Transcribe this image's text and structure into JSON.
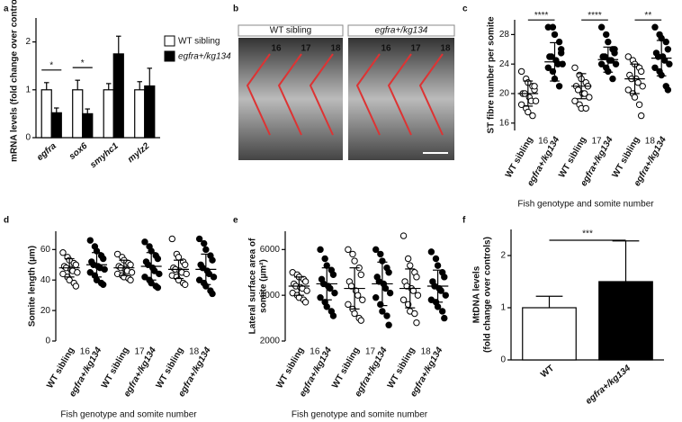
{
  "chart_data": [
    {
      "type": "bar",
      "panel_label": "a",
      "ylabel": "mRNA levels (fold change over control)",
      "categories": [
        "egfra",
        "sox6",
        "smyhc1",
        "mylz2"
      ],
      "series": [
        {
          "name": "WT sibling",
          "color": "#ffffff",
          "values": [
            1,
            1,
            1,
            1
          ],
          "errors": [
            0.15,
            0.2,
            0.13,
            0.17
          ]
        },
        {
          "name": "egfra+/kg134",
          "color": "#000000",
          "values": [
            0.52,
            0.5,
            1.75,
            1.08
          ],
          "errors": [
            0.1,
            0.1,
            0.37,
            0.37
          ]
        }
      ],
      "annotations": [
        "*",
        "*",
        null,
        null
      ],
      "ylim": [
        0,
        2.5
      ],
      "yticks": [
        0,
        1,
        2
      ]
    },
    {
      "type": "image",
      "panel_label": "b",
      "labels": [
        "WT sibling",
        "egfra+/kg134"
      ],
      "somites": [
        "16",
        "17",
        "18"
      ]
    },
    {
      "type": "dot",
      "panel_label": "c",
      "ylabel": "ST fibre number per somite",
      "xlabel": "Fish genotype and somite number",
      "somites": [
        "16",
        "17",
        "18"
      ],
      "annotations": [
        "****",
        "****",
        "**"
      ],
      "groups": [
        {
          "name": "WT sibling",
          "filled": false,
          "mean": 20,
          "sd": 1.7,
          "values": [
            23,
            22,
            21.5,
            21,
            20.5,
            20,
            20,
            19.5,
            19,
            19,
            18.5,
            18,
            17.5,
            17,
            21
          ]
        },
        {
          "name": "egfra+/kg134",
          "filled": true,
          "mean": 24.3,
          "sd": 2.6,
          "values": [
            29,
            29,
            28,
            27,
            26,
            25,
            25,
            24.5,
            24,
            24,
            23.5,
            23,
            22,
            21,
            25.5
          ]
        },
        {
          "name": "WT sibling",
          "filled": false,
          "mean": 21,
          "sd": 1.7,
          "values": [
            23.5,
            22.5,
            22,
            21.5,
            21,
            21,
            20.5,
            20,
            20,
            19.5,
            19,
            18.5,
            18,
            18,
            21
          ]
        },
        {
          "name": "egfra+/kg134",
          "filled": true,
          "mean": 24.6,
          "sd": 1.7,
          "values": [
            29,
            28,
            27,
            26,
            25.5,
            25,
            25,
            24.5,
            24.5,
            24,
            24,
            23.5,
            23,
            22,
            26
          ]
        },
        {
          "name": "WT sibling",
          "filled": false,
          "mean": 22,
          "sd": 2,
          "values": [
            25,
            24.5,
            24,
            23.5,
            23,
            22.5,
            22,
            22,
            21.5,
            21,
            20.5,
            20,
            19.5,
            18.5,
            17
          ]
        },
        {
          "name": "egfra+/kg134",
          "filled": true,
          "mean": 24.8,
          "sd": 2.4,
          "values": [
            29,
            28,
            27.5,
            27,
            26,
            25.5,
            25,
            25,
            24.5,
            24,
            23.5,
            23,
            22.5,
            21,
            20.5
          ]
        }
      ],
      "ylim": [
        15,
        30
      ],
      "yticks": [
        16,
        20,
        24,
        28
      ]
    },
    {
      "type": "dot",
      "panel_label": "d",
      "ylabel": "Somite length (µm)",
      "xlabel": "Fish genotype and somite number",
      "somites": [
        "16",
        "17",
        "18"
      ],
      "annotations": [],
      "groups": [
        {
          "name": "WT sibling",
          "filled": false,
          "mean": 48,
          "sd": 6,
          "values": [
            58,
            55,
            53,
            51,
            50,
            49,
            48,
            47,
            46,
            45,
            44,
            42,
            40,
            38,
            36
          ]
        },
        {
          "name": "egfra+/kg134",
          "filled": true,
          "mean": 50,
          "sd": 8,
          "values": [
            66,
            62,
            59,
            56,
            54,
            52,
            50,
            49,
            48,
            47,
            45,
            43,
            40,
            38,
            37
          ]
        },
        {
          "name": "WT sibling",
          "filled": false,
          "mean": 48,
          "sd": 5,
          "values": [
            57,
            55,
            53,
            51,
            50,
            49,
            48,
            47,
            46,
            45,
            44,
            43,
            42,
            41,
            40
          ]
        },
        {
          "name": "egfra+/kg134",
          "filled": true,
          "mean": 49,
          "sd": 9,
          "values": [
            65,
            62,
            59,
            56,
            54,
            52,
            50,
            48,
            46,
            44,
            42,
            40,
            38,
            36,
            35
          ]
        },
        {
          "name": "WT sibling",
          "filled": false,
          "mean": 47,
          "sd": 6,
          "values": [
            67,
            57,
            55,
            52,
            50,
            48,
            47,
            46,
            45,
            44,
            43,
            42,
            40,
            38,
            37
          ]
        },
        {
          "name": "egfra+/kg134",
          "filled": true,
          "mean": 47,
          "sd": 10,
          "values": [
            67,
            64,
            60,
            56,
            53,
            50,
            48,
            46,
            44,
            42,
            40,
            38,
            36,
            33,
            31
          ]
        }
      ],
      "ylim": [
        0,
        72
      ],
      "yticks": [
        0,
        20,
        40,
        60
      ]
    },
    {
      "type": "dot",
      "panel_label": "e",
      "ylabel": [
        "Lateral surface area of",
        "somite (µm²)"
      ],
      "xlabel": "Fish genotype and somite number",
      "somites": [
        "16",
        "17",
        "18"
      ],
      "annotations": [],
      "groups": [
        {
          "name": "WT sibling",
          "filled": false,
          "mean": 4400,
          "sd": 400,
          "values": [
            5000,
            4900,
            4800,
            4700,
            4600,
            4500,
            4400,
            4350,
            4300,
            4200,
            4100,
            4000,
            3900,
            3800,
            3700
          ]
        },
        {
          "name": "egfra+/kg134",
          "filled": true,
          "mean": 4500,
          "sd": 700,
          "values": [
            6000,
            5600,
            5300,
            5100,
            4900,
            4700,
            4500,
            4400,
            4300,
            4100,
            3900,
            3700,
            3500,
            3300,
            3100
          ]
        },
        {
          "name": "WT sibling",
          "filled": false,
          "mean": 4300,
          "sd": 900,
          "values": [
            6000,
            5800,
            5500,
            5200,
            4900,
            4600,
            4400,
            4200,
            4000,
            3800,
            3600,
            3400,
            3200,
            3000,
            2900
          ]
        },
        {
          "name": "egfra+/kg134",
          "filled": true,
          "mean": 4500,
          "sd": 950,
          "values": [
            6000,
            5800,
            5500,
            5200,
            5000,
            4800,
            4600,
            4500,
            4300,
            4100,
            3900,
            3600,
            3300,
            3100,
            2700
          ]
        },
        {
          "name": "WT sibling",
          "filled": false,
          "mean": 4300,
          "sd": 850,
          "values": [
            6600,
            5600,
            5300,
            5000,
            4800,
            4600,
            4400,
            4300,
            4200,
            4000,
            3800,
            3600,
            3300,
            3200,
            2800
          ]
        },
        {
          "name": "egfra+/kg134",
          "filled": true,
          "mean": 4400,
          "sd": 700,
          "values": [
            5900,
            5600,
            5300,
            5000,
            4800,
            4600,
            4400,
            4300,
            4200,
            4000,
            3800,
            3700,
            3500,
            3300,
            3000
          ]
        }
      ],
      "ylim": [
        2000,
        6800
      ],
      "yticks": [
        2000,
        4000,
        6000
      ]
    },
    {
      "type": "bar",
      "panel_label": "f",
      "ylabel": [
        "MtDNA levels",
        "(fold change over controls)"
      ],
      "categories": [
        "WT",
        "egfra+/kg134"
      ],
      "series": [
        {
          "colors": [
            "#ffffff",
            "#000000"
          ],
          "values": [
            1,
            1.5
          ],
          "errors": [
            0.22,
            0.78
          ]
        }
      ],
      "annotations": [
        "***"
      ],
      "ylim": [
        0,
        2.5
      ],
      "yticks": [
        0,
        1,
        2
      ]
    }
  ]
}
